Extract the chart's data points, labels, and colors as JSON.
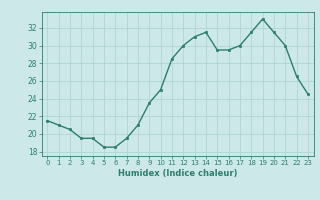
{
  "x": [
    0,
    1,
    2,
    3,
    4,
    5,
    6,
    7,
    8,
    9,
    10,
    11,
    12,
    13,
    14,
    15,
    16,
    17,
    18,
    19,
    20,
    21,
    22,
    23
  ],
  "y": [
    21.5,
    21.0,
    20.5,
    19.5,
    19.5,
    18.5,
    18.5,
    19.5,
    21.0,
    23.5,
    25.0,
    28.5,
    30.0,
    31.0,
    31.5,
    29.5,
    29.5,
    30.0,
    31.5,
    33.0,
    31.5,
    30.0,
    26.5,
    24.5
  ],
  "xlabel": "Humidex (Indice chaleur)",
  "line_color": "#2e7d6e",
  "marker_color": "#2e7d6e",
  "bg_color": "#cce8e8",
  "grid_color": "#aad0d0",
  "ylim": [
    17.5,
    33.8
  ],
  "xlim": [
    -0.5,
    23.5
  ],
  "yticks": [
    18,
    20,
    22,
    24,
    26,
    28,
    30,
    32
  ],
  "xticks": [
    0,
    1,
    2,
    3,
    4,
    5,
    6,
    7,
    8,
    9,
    10,
    11,
    12,
    13,
    14,
    15,
    16,
    17,
    18,
    19,
    20,
    21,
    22,
    23
  ],
  "xtick_labels": [
    "0",
    "1",
    "2",
    "3",
    "4",
    "5",
    "6",
    "7",
    "8",
    "9",
    "10",
    "11",
    "12",
    "13",
    "14",
    "15",
    "16",
    "17",
    "18",
    "19",
    "20",
    "21",
    "22",
    "23"
  ]
}
